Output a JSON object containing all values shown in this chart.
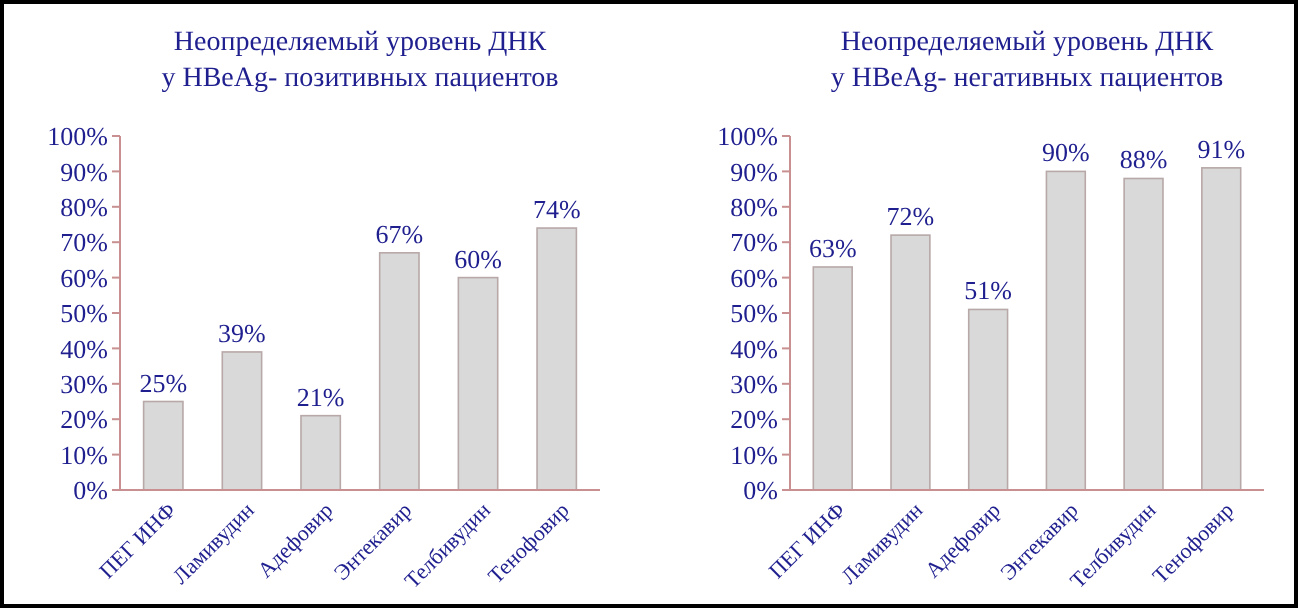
{
  "chart_data": [
    {
      "type": "bar",
      "title": "Неопределяемый уровень ДНК\nу HBeAg- позитивных пациентов",
      "categories": [
        "ПЕГ ИНФ",
        "Ламивудин",
        "Адефовир",
        "Энтекавир",
        "Телбивудин",
        "Тенофовир"
      ],
      "values": [
        25,
        39,
        21,
        67,
        60,
        74
      ],
      "value_labels": [
        "25%",
        "39%",
        "21%",
        "67%",
        "60%",
        "74%"
      ],
      "color": "#d9d9d9",
      "ylim": [
        0,
        100
      ],
      "yticks": [
        {
          "value": 0,
          "label": "0%"
        },
        {
          "value": 10,
          "label": "10%"
        },
        {
          "value": 20,
          "label": "20%"
        },
        {
          "value": 30,
          "label": "30%"
        },
        {
          "value": 40,
          "label": "40%"
        },
        {
          "value": 50,
          "label": "50%"
        },
        {
          "value": 60,
          "label": "60%"
        },
        {
          "value": 70,
          "label": "70%"
        },
        {
          "value": 80,
          "label": "80%"
        },
        {
          "value": 90,
          "label": "90%"
        },
        {
          "value": 100,
          "label": "100%"
        }
      ],
      "grid": false
    },
    {
      "type": "bar",
      "title": "Неопределяемый уровень ДНК\nу HBeAg- негативных пациентов",
      "categories": [
        "ПЕГ ИНФ",
        "Ламивудин",
        "Адефовир",
        "Энтекавир",
        "Телбивудин",
        "Тенофовир"
      ],
      "values": [
        63,
        72,
        51,
        90,
        88,
        91
      ],
      "value_labels": [
        "63%",
        "72%",
        "51%",
        "90%",
        "88%",
        "91%"
      ],
      "color": "#d9d9d9",
      "ylim": [
        0,
        100
      ],
      "yticks": [
        {
          "value": 0,
          "label": "0%"
        },
        {
          "value": 10,
          "label": "10%"
        },
        {
          "value": 20,
          "label": "20%"
        },
        {
          "value": 30,
          "label": "30%"
        },
        {
          "value": 40,
          "label": "40%"
        },
        {
          "value": 50,
          "label": "50%"
        },
        {
          "value": 60,
          "label": "60%"
        },
        {
          "value": 70,
          "label": "70%"
        },
        {
          "value": 80,
          "label": "80%"
        },
        {
          "value": 90,
          "label": "90%"
        },
        {
          "value": 100,
          "label": "100%"
        }
      ],
      "grid": false
    }
  ]
}
